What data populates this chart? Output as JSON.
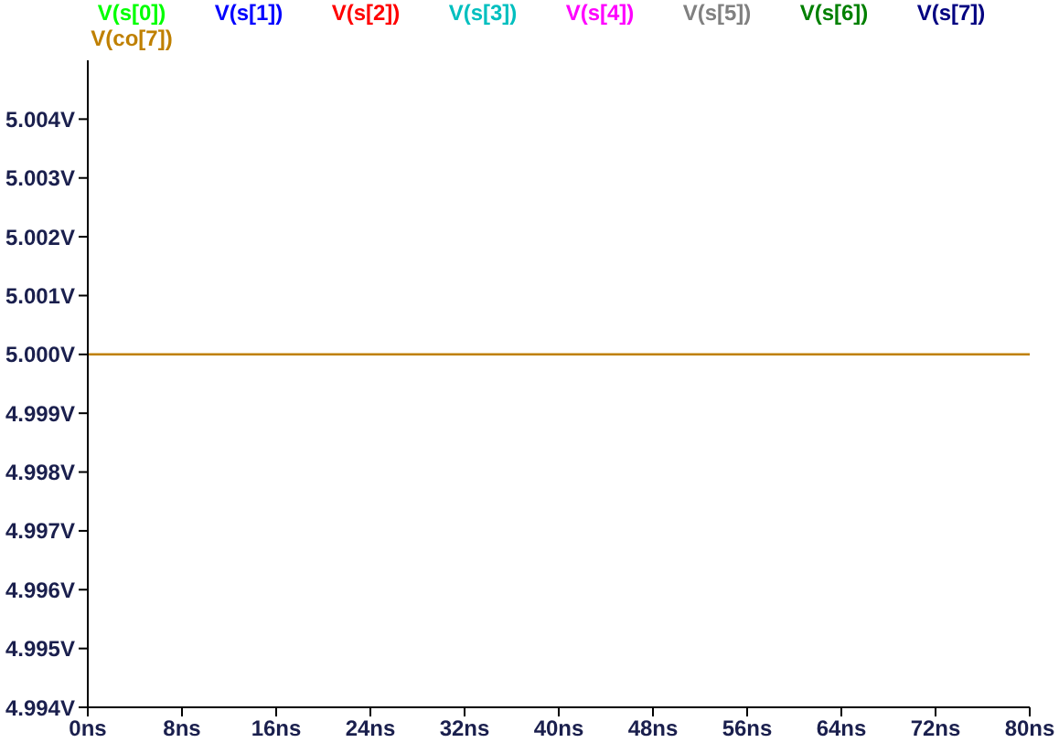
{
  "chart_data": {
    "type": "line",
    "x": [
      0,
      80
    ],
    "series": [
      {
        "name": "V(s[0])",
        "color": "#00ff00",
        "values": [
          null,
          null
        ]
      },
      {
        "name": "V(s[1])",
        "color": "#0000ff",
        "values": [
          null,
          null
        ]
      },
      {
        "name": "V(s[2])",
        "color": "#ff0000",
        "values": [
          null,
          null
        ]
      },
      {
        "name": "V(s[3])",
        "color": "#00bfbf",
        "values": [
          null,
          null
        ]
      },
      {
        "name": "V(s[4])",
        "color": "#ff00ff",
        "values": [
          null,
          null
        ]
      },
      {
        "name": "V(s[5])",
        "color": "#808080",
        "values": [
          null,
          null
        ]
      },
      {
        "name": "V(s[6])",
        "color": "#008000",
        "values": [
          null,
          null
        ]
      },
      {
        "name": "V(s[7])",
        "color": "#000080",
        "values": [
          null,
          null
        ]
      },
      {
        "name": "V(co[7])",
        "color": "#bf8000",
        "values": [
          5.0,
          5.0
        ]
      }
    ],
    "xlim": [
      0,
      80
    ],
    "xticks": [
      {
        "value": 0,
        "label": "0ns"
      },
      {
        "value": 8,
        "label": "8ns"
      },
      {
        "value": 16,
        "label": "16ns"
      },
      {
        "value": 24,
        "label": "24ns"
      },
      {
        "value": 32,
        "label": "32ns"
      },
      {
        "value": 40,
        "label": "40ns"
      },
      {
        "value": 48,
        "label": "48ns"
      },
      {
        "value": 56,
        "label": "56ns"
      },
      {
        "value": 64,
        "label": "64ns"
      },
      {
        "value": 72,
        "label": "72ns"
      },
      {
        "value": 80,
        "label": "80ns"
      }
    ],
    "ylim": [
      4.994,
      5.005
    ],
    "yticks": [
      {
        "value": 4.994,
        "label": "4.994V"
      },
      {
        "value": 4.995,
        "label": "4.995V"
      },
      {
        "value": 4.996,
        "label": "4.996V"
      },
      {
        "value": 4.997,
        "label": "4.997V"
      },
      {
        "value": 4.998,
        "label": "4.998V"
      },
      {
        "value": 4.999,
        "label": "4.999V"
      },
      {
        "value": 5.0,
        "label": "5.000V"
      },
      {
        "value": 5.001,
        "label": "5.001V"
      },
      {
        "value": 5.002,
        "label": "5.002V"
      },
      {
        "value": 5.003,
        "label": "5.003V"
      },
      {
        "value": 5.004,
        "label": "5.004V"
      }
    ],
    "grid": false,
    "legend": "top",
    "marker": "none",
    "line_style": "solid"
  }
}
